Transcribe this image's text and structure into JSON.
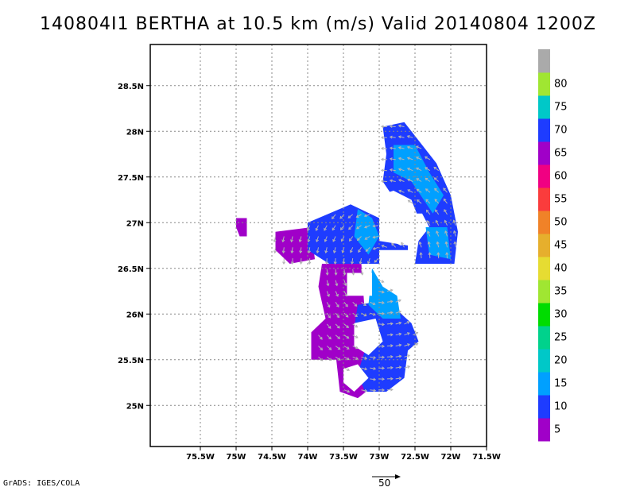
{
  "title": "140804I1 BERTHA at 10.5 km (m/s) Valid 20140804 1200Z",
  "footer": {
    "credit": "GrADS: IGES/COLA",
    "ref_vector_label": "50"
  },
  "chart_data": {
    "type": "heatmap",
    "title": "140804I1 BERTHA at 10.5 km (m/s) Valid 20140804 1200Z",
    "xlabel": "",
    "ylabel": "",
    "xlim": [
      -76.2,
      -71.5
    ],
    "ylim": [
      24.55,
      28.95
    ],
    "x_ticks": [
      {
        "value": -75.5,
        "label": "75.5W"
      },
      {
        "value": -75,
        "label": "75W"
      },
      {
        "value": -74.5,
        "label": "74.5W"
      },
      {
        "value": -74,
        "label": "74W"
      },
      {
        "value": -73.5,
        "label": "73.5W"
      },
      {
        "value": -73,
        "label": "73W"
      },
      {
        "value": -72.5,
        "label": "72.5W"
      },
      {
        "value": -72,
        "label": "72W"
      },
      {
        "value": -71.5,
        "label": "71.5W"
      }
    ],
    "y_ticks": [
      {
        "value": 25,
        "label": "25N"
      },
      {
        "value": 25.5,
        "label": "25.5N"
      },
      {
        "value": 26,
        "label": "26N"
      },
      {
        "value": 26.5,
        "label": "26.5N"
      },
      {
        "value": 27,
        "label": "27N"
      },
      {
        "value": 27.5,
        "label": "27.5N"
      },
      {
        "value": 28,
        "label": "28N"
      },
      {
        "value": 28.5,
        "label": "28.5N"
      }
    ],
    "grid": true,
    "colorbar": {
      "labels": [
        "5",
        "10",
        "15",
        "20",
        "25",
        "30",
        "35",
        "40",
        "45",
        "50",
        "55",
        "60",
        "65",
        "70",
        "75",
        "80"
      ],
      "colors": [
        "#a000c8",
        "#1e3cff",
        "#00a0ff",
        "#00c8c8",
        "#00d28c",
        "#00dc00",
        "#a0e632",
        "#e6dc32",
        "#e6af2d",
        "#f08228",
        "#fa3c3c",
        "#f00082",
        "#a000c8",
        "#1e3cff",
        "#00c8c8",
        "#a0e632",
        "#aaaaaa"
      ]
    },
    "regions": [
      {
        "level": "0-10",
        "color": "#a000c8",
        "polygon": [
          [
            -73.8,
            26.55
          ],
          [
            -73.25,
            26.55
          ],
          [
            -73.2,
            26.0
          ],
          [
            -73.15,
            25.5
          ],
          [
            -73.1,
            25.2
          ],
          [
            -73.3,
            25.08
          ],
          [
            -73.55,
            25.15
          ],
          [
            -73.6,
            25.5
          ],
          [
            -73.95,
            25.5
          ],
          [
            -73.95,
            25.8
          ],
          [
            -73.75,
            25.95
          ],
          [
            -73.85,
            26.3
          ]
        ]
      },
      {
        "level": "0-10",
        "color": "#a000c8",
        "polygon": [
          [
            -74.45,
            26.9
          ],
          [
            -73.95,
            26.95
          ],
          [
            -73.9,
            26.6
          ],
          [
            -74.25,
            26.55
          ],
          [
            -74.45,
            26.7
          ]
        ]
      },
      {
        "level": "0-10",
        "color": "#a000c8",
        "polygon": [
          [
            -75.0,
            27.05
          ],
          [
            -74.85,
            27.05
          ],
          [
            -74.85,
            26.85
          ],
          [
            -74.95,
            26.85
          ],
          [
            -75.0,
            26.95
          ]
        ]
      },
      {
        "level": "10-15",
        "color": "#1e3cff",
        "polygon": [
          [
            -74.0,
            27.0
          ],
          [
            -73.4,
            27.2
          ],
          [
            -73.0,
            27.05
          ],
          [
            -73.0,
            26.8
          ],
          [
            -72.6,
            26.75
          ],
          [
            -72.6,
            26.55
          ],
          [
            -73.7,
            26.55
          ],
          [
            -74.0,
            26.7
          ]
        ]
      },
      {
        "level": "10-15",
        "color": "#1e3cff",
        "polygon": [
          [
            -72.95,
            28.05
          ],
          [
            -72.65,
            28.1
          ],
          [
            -72.2,
            27.65
          ],
          [
            -72.0,
            27.3
          ],
          [
            -71.9,
            26.9
          ],
          [
            -71.95,
            26.55
          ],
          [
            -72.5,
            26.55
          ],
          [
            -72.45,
            26.8
          ],
          [
            -72.3,
            26.95
          ],
          [
            -72.4,
            27.1
          ],
          [
            -72.65,
            27.1
          ],
          [
            -72.95,
            27.45
          ],
          [
            -72.9,
            27.75
          ]
        ]
      },
      {
        "level": "10-15",
        "color": "#1e3cff",
        "polygon": [
          [
            -73.3,
            26.1
          ],
          [
            -72.9,
            26.15
          ],
          [
            -72.55,
            25.9
          ],
          [
            -72.45,
            25.7
          ],
          [
            -72.6,
            25.6
          ],
          [
            -72.65,
            25.3
          ],
          [
            -72.9,
            25.15
          ],
          [
            -73.2,
            25.15
          ],
          [
            -73.3,
            25.35
          ],
          [
            -73.2,
            25.6
          ],
          [
            -73.35,
            25.85
          ]
        ]
      },
      {
        "level": "15-20",
        "color": "#00a0ff",
        "polygon": [
          [
            -72.8,
            27.85
          ],
          [
            -72.5,
            27.85
          ],
          [
            -72.3,
            27.55
          ],
          [
            -72.1,
            27.3
          ],
          [
            -72.25,
            27.1
          ],
          [
            -72.55,
            27.45
          ],
          [
            -72.8,
            27.55
          ]
        ]
      },
      {
        "level": "15-20",
        "color": "#00a0ff",
        "polygon": [
          [
            -73.3,
            27.15
          ],
          [
            -73.1,
            27.05
          ],
          [
            -73.0,
            26.85
          ],
          [
            -73.15,
            26.65
          ],
          [
            -73.35,
            26.85
          ]
        ]
      },
      {
        "level": "15-20",
        "color": "#00a0ff",
        "polygon": [
          [
            -73.1,
            26.5
          ],
          [
            -72.95,
            26.3
          ],
          [
            -72.75,
            26.2
          ],
          [
            -72.7,
            25.95
          ],
          [
            -72.95,
            25.95
          ],
          [
            -73.15,
            26.1
          ]
        ]
      },
      {
        "level": "15-20",
        "color": "#00a0ff",
        "polygon": [
          [
            -72.35,
            26.95
          ],
          [
            -72.05,
            26.95
          ],
          [
            -72.0,
            26.6
          ],
          [
            -72.3,
            26.65
          ]
        ]
      }
    ],
    "holes": [
      {
        "polygon": [
          [
            -73.0,
            27.3
          ],
          [
            -72.8,
            27.35
          ],
          [
            -72.55,
            27.25
          ],
          [
            -72.45,
            27.05
          ],
          [
            -72.45,
            26.8
          ],
          [
            -72.7,
            26.75
          ],
          [
            -72.95,
            26.85
          ]
        ]
      },
      {
        "polygon": [
          [
            -73.0,
            26.5
          ],
          [
            -72.5,
            26.5
          ],
          [
            -72.5,
            26.7
          ],
          [
            -73.0,
            26.7
          ]
        ]
      },
      {
        "polygon": [
          [
            -73.45,
            26.45
          ],
          [
            -73.1,
            26.45
          ],
          [
            -73.1,
            26.2
          ],
          [
            -73.45,
            26.2
          ]
        ]
      },
      {
        "polygon": [
          [
            -73.35,
            25.9
          ],
          [
            -73.05,
            25.95
          ],
          [
            -72.95,
            25.7
          ],
          [
            -73.15,
            25.55
          ],
          [
            -73.35,
            25.65
          ]
        ]
      },
      {
        "polygon": [
          [
            -73.5,
            25.4
          ],
          [
            -73.3,
            25.45
          ],
          [
            -73.15,
            25.3
          ],
          [
            -73.35,
            25.15
          ],
          [
            -73.5,
            25.25
          ]
        ]
      }
    ]
  }
}
